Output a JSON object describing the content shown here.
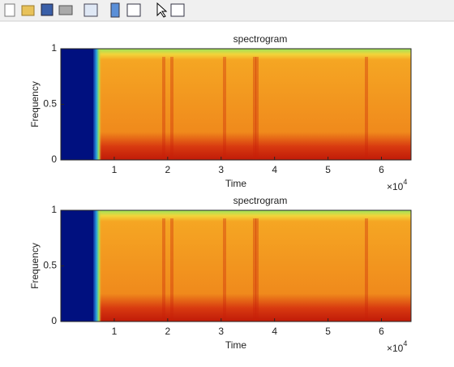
{
  "chart_data": [
    {
      "type": "spectrogram",
      "title": "spectrogram",
      "xlabel": "Time",
      "ylabel": "Frequency",
      "xlim": [
        0,
        65536
      ],
      "xticks": [
        {
          "value": 10000,
          "label": "1"
        },
        {
          "value": 20000,
          "label": "2"
        },
        {
          "value": 30000,
          "label": "3"
        },
        {
          "value": 40000,
          "label": "4"
        },
        {
          "value": 50000,
          "label": "5"
        },
        {
          "value": 60000,
          "label": "6"
        }
      ],
      "x_multiplier": "×10",
      "x_multiplier_exponent": "4",
      "ylim": [
        0,
        1
      ],
      "yticks": [
        0,
        0.5,
        1
      ]
    },
    {
      "type": "spectrogram",
      "title": "spectrogram",
      "xlabel": "Time",
      "ylabel": "Frequency",
      "xlim": [
        0,
        65536
      ],
      "xticks": [
        {
          "value": 10000,
          "label": "1"
        },
        {
          "value": 20000,
          "label": "2"
        },
        {
          "value": 30000,
          "label": "3"
        },
        {
          "value": 40000,
          "label": "4"
        },
        {
          "value": 50000,
          "label": "5"
        },
        {
          "value": 60000,
          "label": "6"
        }
      ],
      "x_multiplier": "×10",
      "x_multiplier_exponent": "4",
      "ylim": [
        0,
        1
      ],
      "yticks": [
        0,
        0.5,
        1
      ]
    }
  ]
}
